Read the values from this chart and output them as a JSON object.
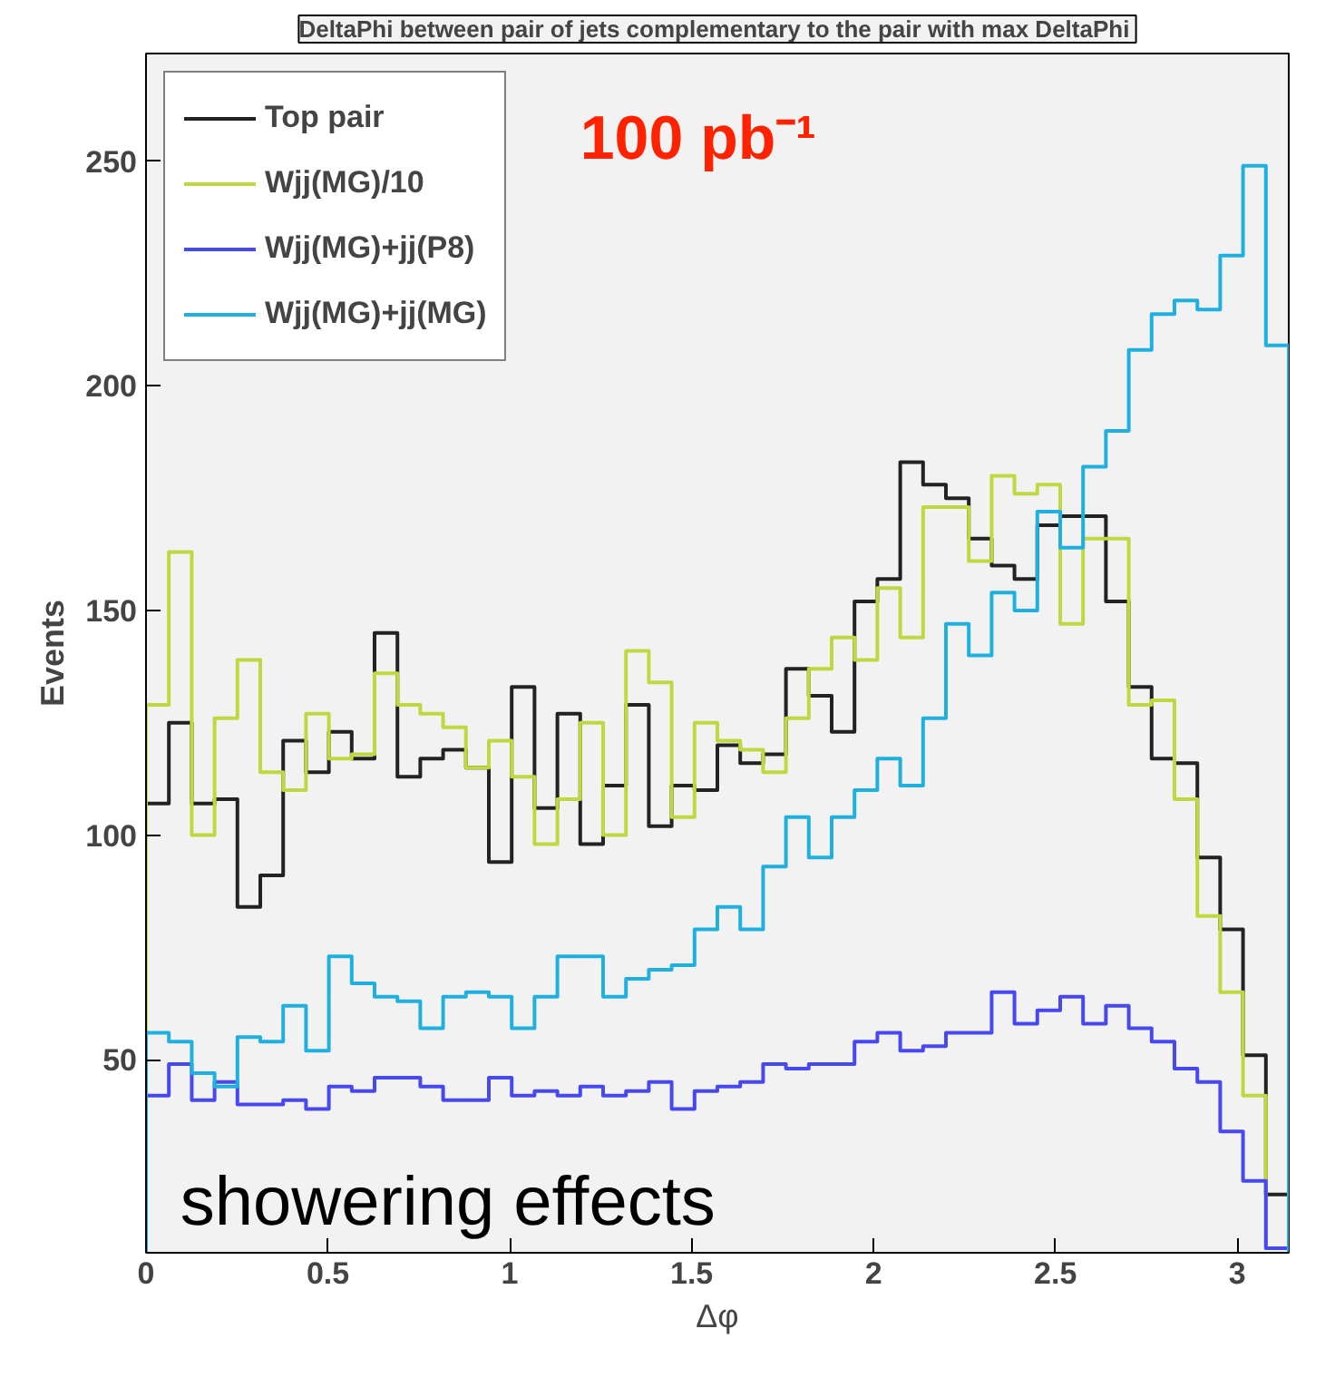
{
  "chart_data": {
    "type": "histogram",
    "title": "DeltaPhi between pair of jets complementary to the pair with max  DeltaPhi",
    "xlabel": "Δφ",
    "ylabel": "Events",
    "annotations": [
      "100 pb⁻¹",
      "showering effects"
    ],
    "bins": [
      0,
      0.0628,
      0.1257,
      0.1885,
      0.2513,
      0.3142,
      0.377,
      0.4398,
      0.5027,
      0.5655,
      0.6283,
      0.6912,
      0.754,
      0.8168,
      0.8796,
      0.9425,
      1.0053,
      1.0681,
      1.131,
      1.1938,
      1.2566,
      1.3195,
      1.3823,
      1.4451,
      1.508,
      1.5708,
      1.6336,
      1.6965,
      1.7593,
      1.8221,
      1.885,
      1.9478,
      2.0106,
      2.0735,
      2.1363,
      2.1991,
      2.2619,
      2.3248,
      2.3876,
      2.4504,
      2.5133,
      2.5761,
      2.6389,
      2.7018,
      2.7646,
      2.8274,
      2.8903,
      2.9531,
      3.0159,
      3.0788,
      3.1416
    ],
    "series": [
      {
        "name": "Top pair",
        "color": "#222222",
        "values": [
          107,
          125,
          107,
          108,
          84,
          91,
          121,
          114,
          123,
          117,
          145,
          113,
          117,
          119,
          115,
          94,
          133,
          106,
          127,
          98,
          111,
          129,
          102,
          111,
          110,
          120,
          116,
          118,
          137,
          131,
          123,
          152,
          157,
          183,
          178,
          175,
          166,
          160,
          157,
          169,
          171,
          171,
          152,
          133,
          117,
          116,
          95,
          79,
          51,
          20
        ]
      },
      {
        "name": "Wjj(MG)/10",
        "color": "#c0d840",
        "values": [
          129,
          163,
          100,
          126,
          139,
          114,
          110,
          127,
          117,
          118,
          136,
          129,
          127,
          124,
          115,
          121,
          113,
          98,
          108,
          125,
          100,
          141,
          134,
          104,
          125,
          121,
          119,
          114,
          126,
          137,
          144,
          139,
          155,
          144,
          173,
          173,
          161,
          180,
          176,
          178,
          147,
          166,
          166,
          129,
          130,
          108,
          82,
          65,
          42,
          8
        ]
      },
      {
        "name": "Wjj(MG)+jj(P8)",
        "color": "#4848f0",
        "values": [
          42,
          49,
          41,
          45,
          40,
          40,
          41,
          39,
          44,
          43,
          46,
          46,
          44,
          41,
          41,
          46,
          42,
          43,
          42,
          44,
          42,
          43,
          45,
          39,
          43,
          44,
          45,
          49,
          48,
          49,
          49,
          54,
          56,
          52,
          53,
          56,
          56,
          65,
          58,
          61,
          64,
          58,
          62,
          57,
          54,
          48,
          45,
          34,
          23,
          8
        ]
      },
      {
        "name": "Wjj(MG)+jj(MG)",
        "color": "#20b0e0",
        "values": [
          56,
          54,
          47,
          44,
          55,
          54,
          62,
          52,
          73,
          67,
          64,
          63,
          57,
          64,
          65,
          64,
          57,
          64,
          73,
          73,
          64,
          68,
          70,
          71,
          79,
          84,
          79,
          93,
          104,
          95,
          104,
          110,
          117,
          111,
          126,
          147,
          140,
          154,
          150,
          172,
          164,
          182,
          190,
          208,
          216,
          219,
          217,
          229,
          249,
          209
        ]
      }
    ],
    "xlim": [
      0,
      3.1416
    ],
    "ylim": [
      7,
      274
    ],
    "xticks": [
      0,
      0.5,
      1,
      1.5,
      2,
      2.5,
      3
    ],
    "yticks": [
      50,
      100,
      150,
      200,
      250
    ],
    "grid": false,
    "legend": "top left"
  }
}
